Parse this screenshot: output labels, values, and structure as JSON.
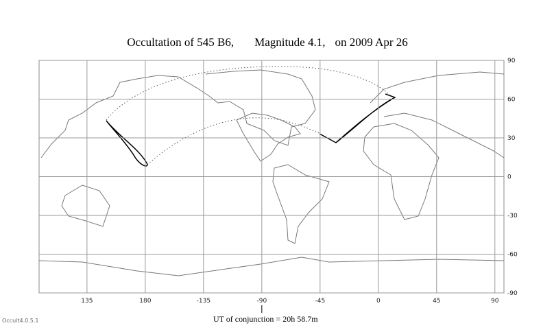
{
  "chart_data": {
    "type": "map",
    "title_parts": [
      "Occultation  of  545 B6,",
      "Magnitude 4.1,",
      "on  2009 Apr 26"
    ],
    "xlim": [
      98,
      457
    ],
    "xticks": [
      135,
      180,
      {
        "value": 225,
        "label": "-135"
      },
      {
        "value": 270,
        "label": "-90"
      },
      {
        "value": 315,
        "label": "-45"
      },
      {
        "value": 360,
        "label": "0"
      },
      {
        "value": 405,
        "label": "45"
      },
      {
        "value": 450,
        "label": "90"
      }
    ],
    "ylim": [
      -90,
      90
    ],
    "yticks": [
      90,
      60,
      30,
      0,
      -30,
      -60,
      -90
    ],
    "grid": true,
    "conjunction_label": "UT of conjunction = 20h 58.7m",
    "conjunction_longitude": 270,
    "version": "Occult4.0.5.1"
  }
}
